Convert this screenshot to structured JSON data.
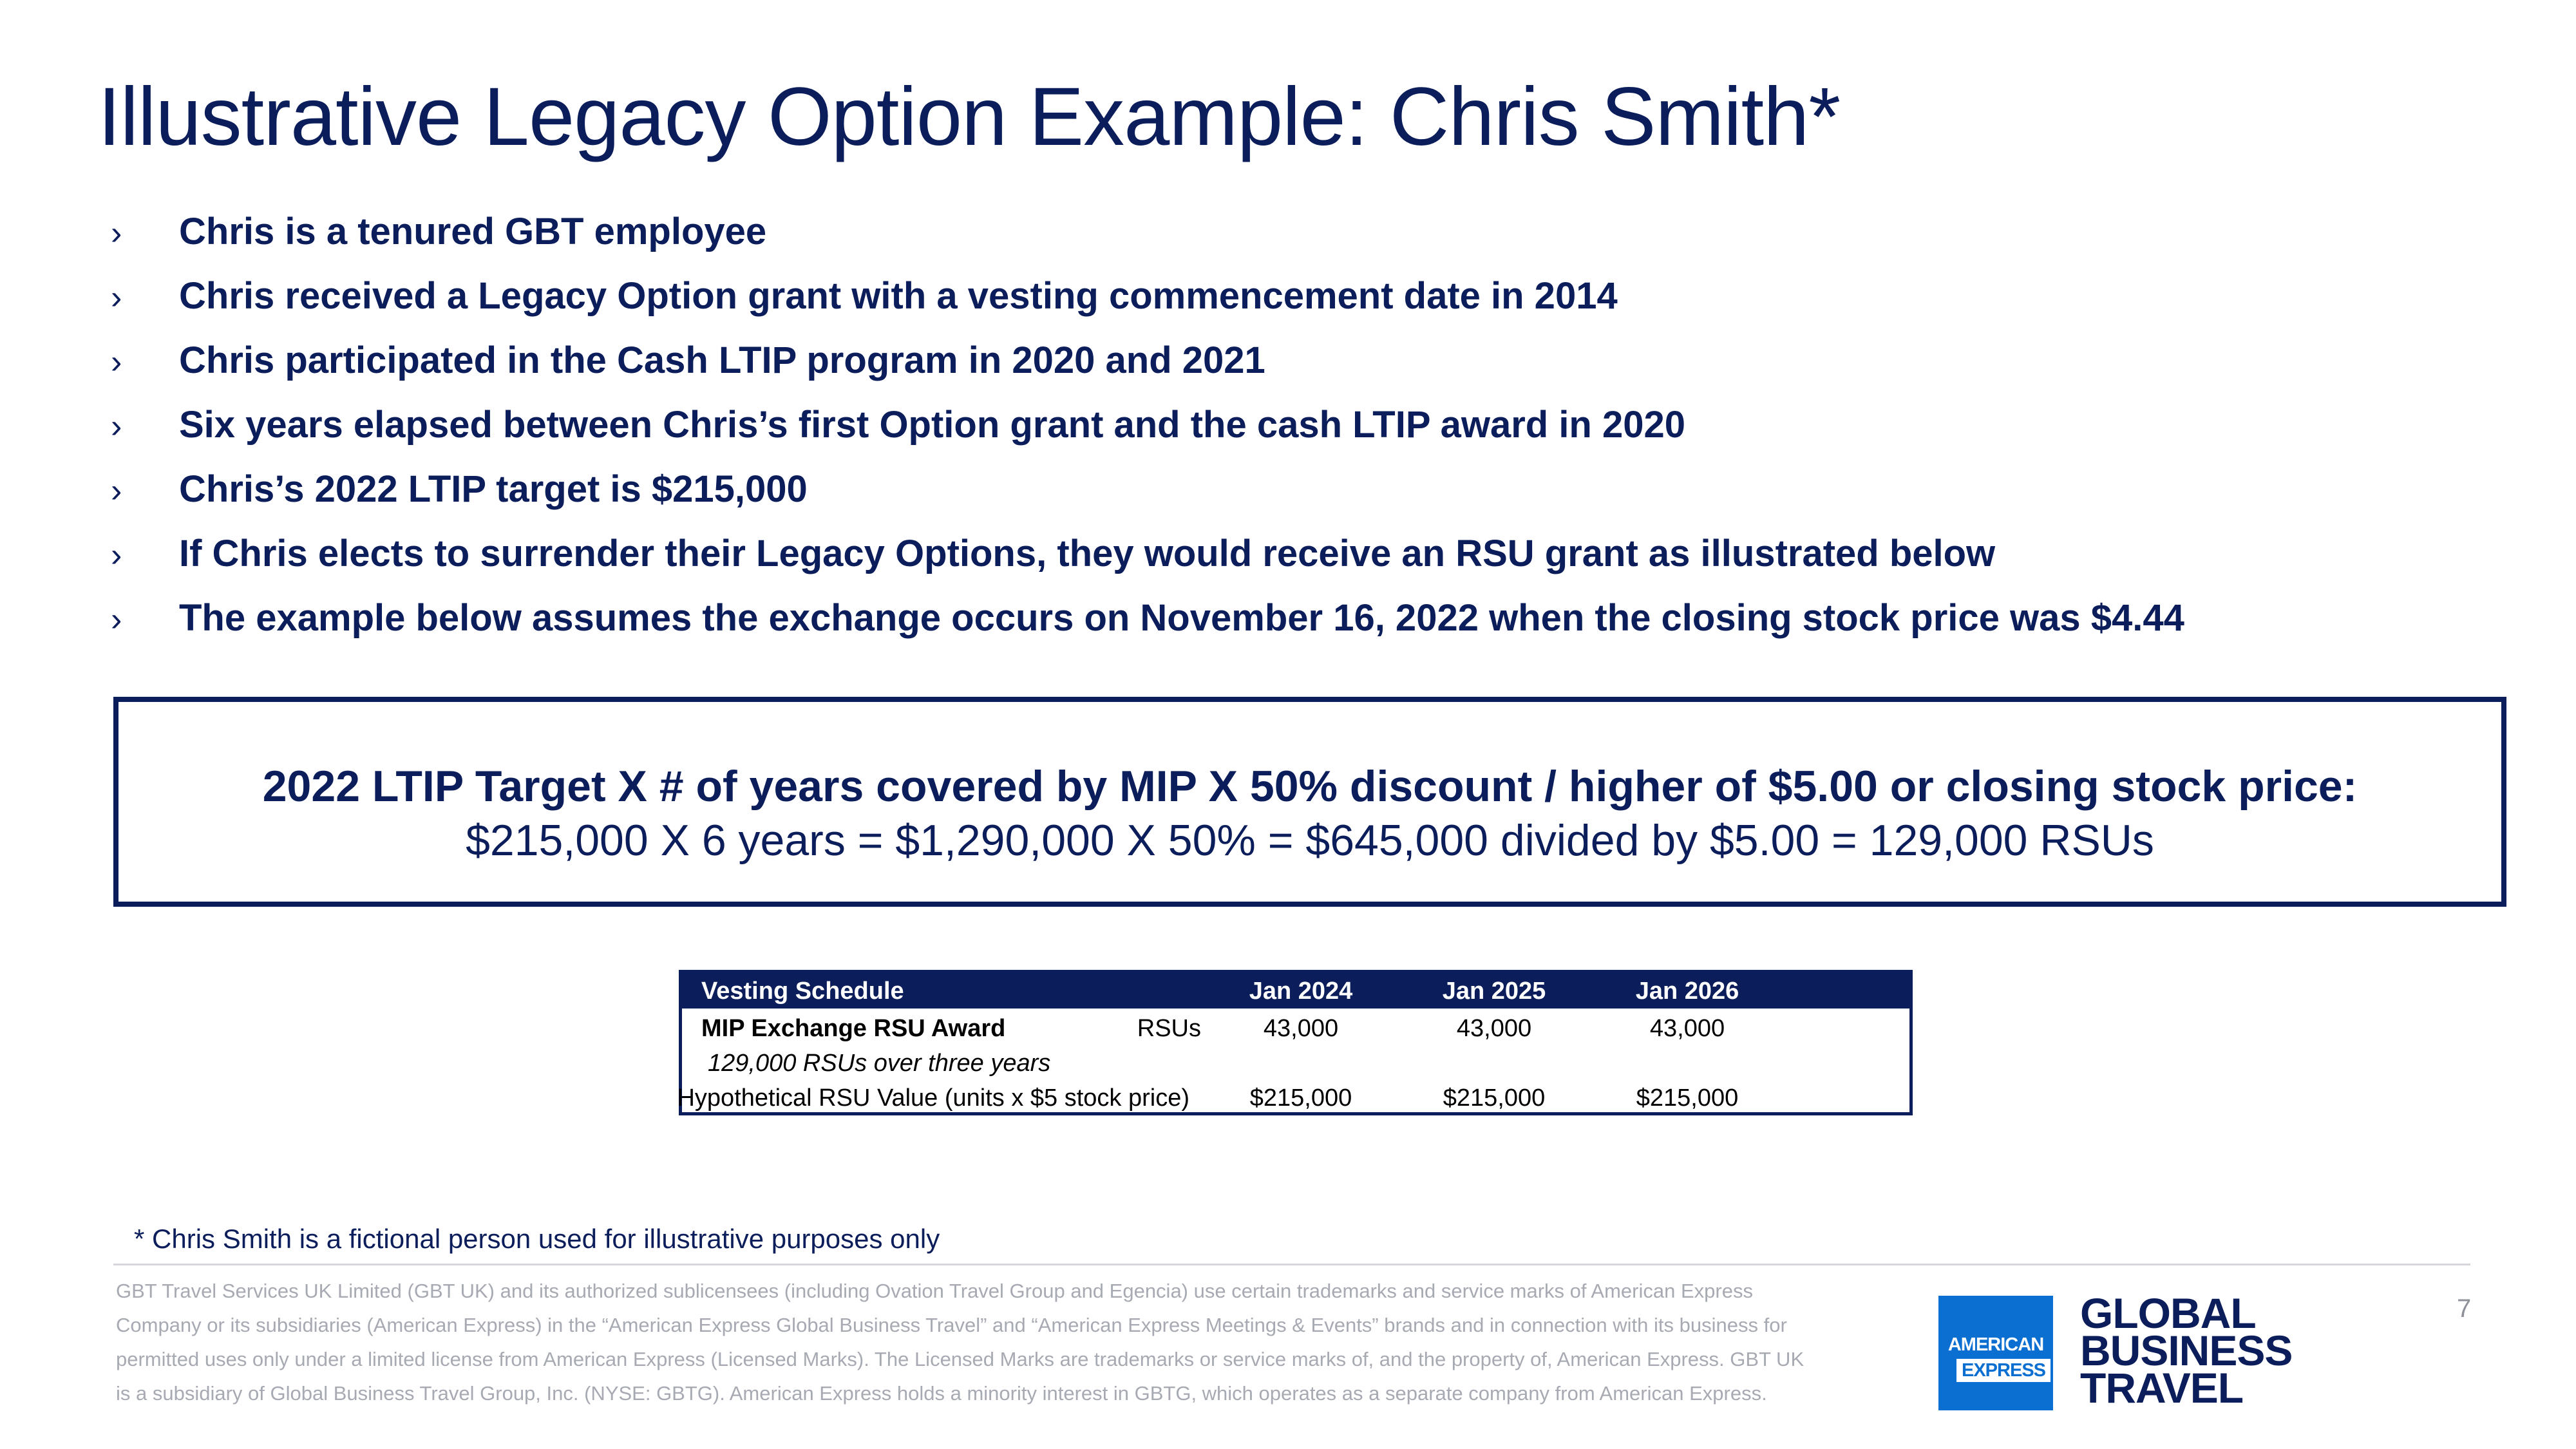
{
  "title": "Illustrative Legacy Option Example: Chris Smith*",
  "bullets": [
    "Chris is a tenured GBT employee",
    "Chris received a Legacy Option grant with a vesting commencement date in 2014",
    "Chris participated in the Cash LTIP program in 2020 and 2021",
    "Six years elapsed between Chris’s first Option grant and the cash LTIP award in 2020",
    "Chris’s 2022 LTIP target is $215,000",
    "If Chris elects to surrender their Legacy Options, they would receive an RSU grant as illustrated below",
    "The example below assumes the exchange occurs on November 16, 2022 when the closing stock price was $4.44"
  ],
  "bullet_marker": "›",
  "formula": {
    "heading": "2022 LTIP Target X # of years covered by MIP X 50% discount / higher of $5.00 or closing stock price:",
    "calculation": "$215,000 X 6 years = $1,290,000 X 50% = $645,000 divided by $5.00 = 129,000 RSUs"
  },
  "vesting_table": {
    "header": [
      "Vesting Schedule",
      "Jan 2024",
      "Jan 2025",
      "Jan 2026"
    ],
    "award_row": {
      "label": "MIP Exchange RSU Award",
      "unit": "RSUs",
      "values": [
        "43,000",
        "43,000",
        "43,000"
      ]
    },
    "note_row": "129,000 RSUs over three years",
    "value_row": {
      "label": "Hypothetical RSU Value (units x $5 stock price)",
      "values": [
        "$215,000",
        "$215,000",
        "$215,000"
      ]
    }
  },
  "footnote": "* Chris Smith is a fictional person used for illustrative purposes only",
  "legal": "GBT Travel Services UK Limited (GBT UK) and its authorized sublicensees (including Ovation Travel Group and Egencia) use certain trademarks and service marks of American Express Company or its subsidiaries (American Express) in the “American Express Global Business Travel” and “American Express Meetings & Events” brands and in connection with its business for permitted uses only under a limited license from American Express (Licensed Marks).  The Licensed Marks are trademarks or service marks of, and the property of, American Express. GBT UK is a subsidiary of Global Business Travel Group, Inc. (NYSE: GBTG). American Express holds a minority interest in GBTG, which operates as a separate company from American Express.",
  "page_number": "7",
  "logo": {
    "line1": "AMERICAN",
    "line2": "EXPRESS",
    "brand": [
      "GLOBAL",
      "BUSINESS",
      "TRAVEL"
    ]
  },
  "colors": {
    "navy": "#0b1d5a",
    "amex_blue": "#0a6fd1",
    "legal_gray": "#a7aab2"
  }
}
